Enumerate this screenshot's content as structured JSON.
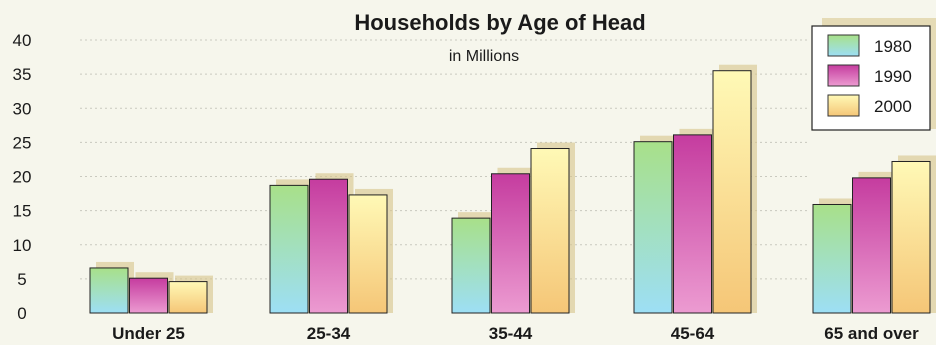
{
  "chart_data": {
    "type": "bar",
    "title": "Households by Age of Head",
    "subtitle": "in Millions",
    "xlabel": "",
    "ylabel": "",
    "categories": [
      "Under 25",
      "25-34",
      "35-44",
      "45-64",
      "65 and over"
    ],
    "series": [
      {
        "name": "1980",
        "values": [
          6.6,
          18.7,
          13.9,
          25.1,
          15.9
        ]
      },
      {
        "name": "1990",
        "values": [
          5.1,
          19.6,
          20.4,
          26.1,
          19.8
        ]
      },
      {
        "name": "2000",
        "values": [
          4.6,
          17.3,
          24.1,
          35.5,
          22.2
        ]
      }
    ],
    "ylim": [
      0,
      40
    ],
    "yticks": [
      "0",
      "5",
      "10",
      "15",
      "20",
      "25",
      "30",
      "35",
      "40"
    ],
    "grid": true,
    "legend_position": "top-right",
    "colors": {
      "1980_top": "#a8e089",
      "1980_bottom": "#9ddff5",
      "1990_top": "#c53c9f",
      "1990_bottom": "#ec9bd1",
      "2000_top": "#fff9b6",
      "2000_bottom": "#f5c677",
      "shadow": "#d7c48a",
      "background": "#f6f6ec"
    }
  }
}
